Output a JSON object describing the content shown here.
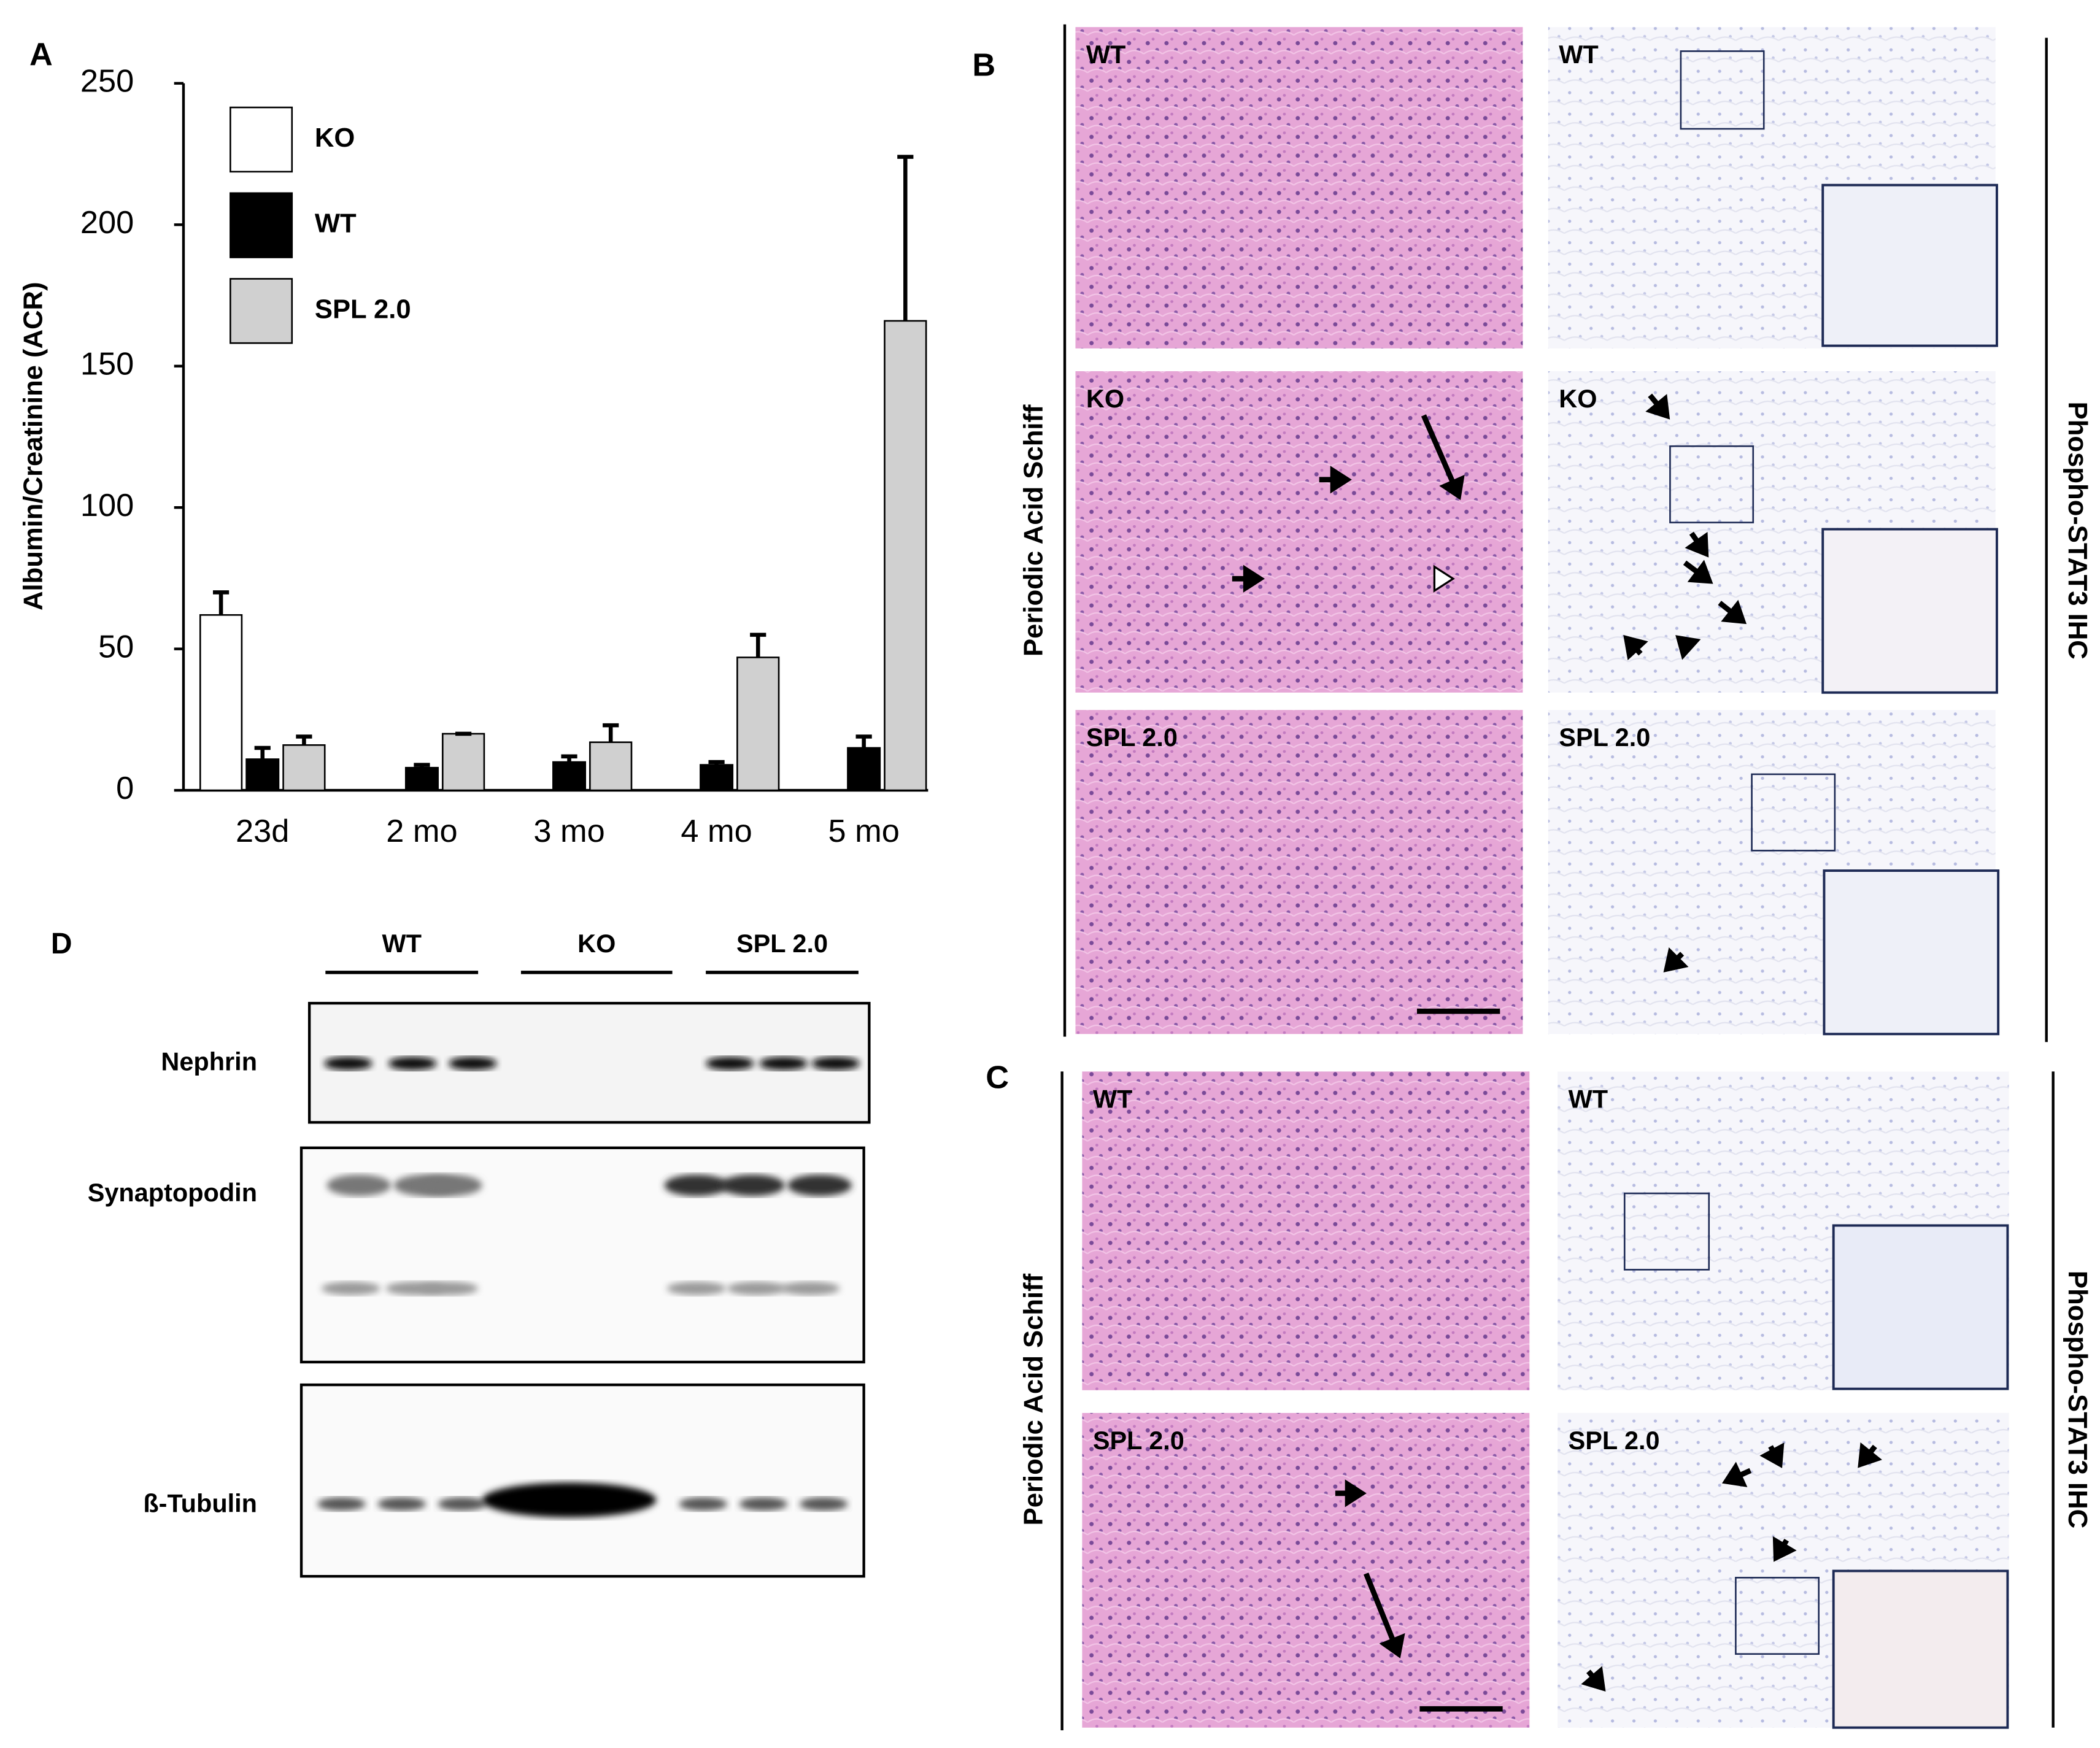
{
  "chart_data": {
    "type": "bar",
    "y_label": "Albumin/Creatinine (ACR)",
    "categories": [
      "23d",
      "2 mo",
      "3 mo",
      "4 mo",
      "5 mo"
    ],
    "series": [
      {
        "name": "KO",
        "color": "#ffffff",
        "values": [
          62,
          null,
          null,
          null,
          null
        ],
        "errors": [
          8,
          null,
          null,
          null,
          null
        ]
      },
      {
        "name": "WT",
        "color": "#000000",
        "values": [
          11,
          8,
          10,
          9,
          15
        ],
        "errors": [
          4,
          1,
          2,
          1,
          4
        ]
      },
      {
        "name": "SPL 2.0",
        "color": "#d0d0d0",
        "values": [
          16,
          20,
          17,
          47,
          166
        ],
        "errors": [
          3,
          0,
          6,
          8,
          58
        ]
      }
    ],
    "ylim": [
      0,
      250
    ],
    "yticks": [
      0,
      50,
      100,
      150,
      200,
      250
    ],
    "grid": false,
    "legend": "upper left"
  },
  "panel_labels": [
    "A",
    "B",
    "C",
    "D"
  ],
  "panel_B": {
    "left_label": "Periodic Acid Schiff",
    "right_label": "Phospho-STAT3 IHC",
    "image_labels": [
      "WT",
      "WT",
      "KO",
      "KO",
      "SPL 2.0",
      "SPL 2.0"
    ]
  },
  "panel_C": {
    "left_label": "Periodic Acid Schiff",
    "right_label": "Phospho-STAT3 IHC",
    "image_labels": [
      "WT",
      "WT",
      "SPL 2.0",
      "SPL 2.0"
    ]
  },
  "panel_D": {
    "groups": [
      "WT",
      "KO",
      "SPL 2.0"
    ],
    "blots": [
      "Nephrin",
      "Synaptopodin",
      "ß-Tubulin"
    ]
  }
}
